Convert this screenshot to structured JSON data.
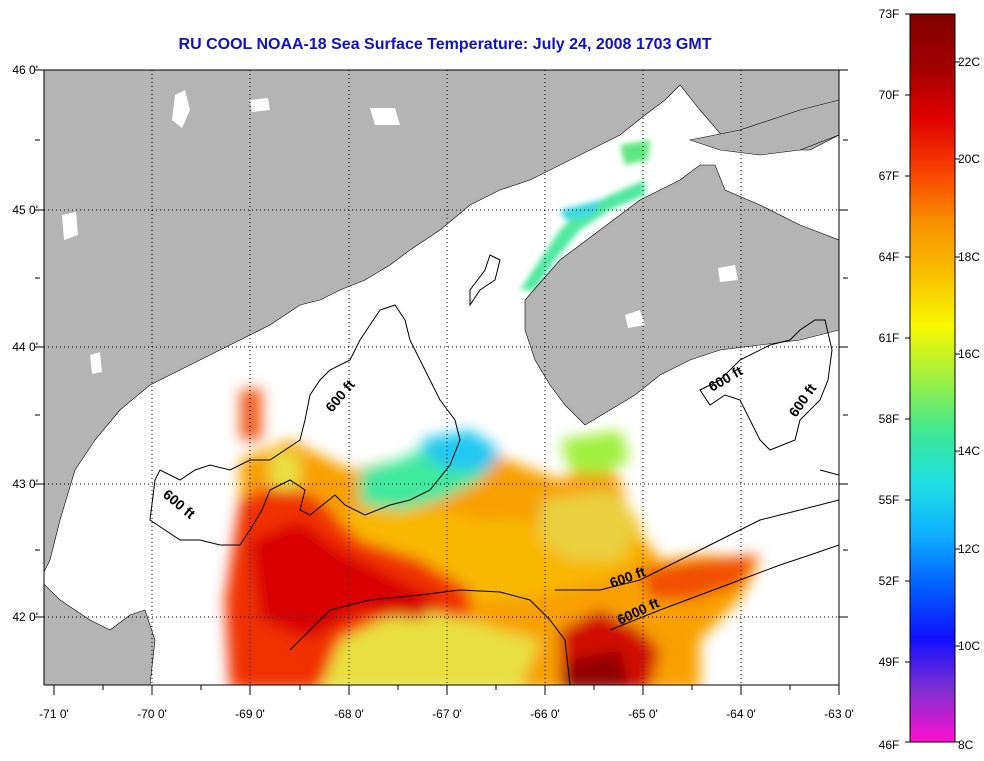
{
  "title": "RU COOL  NOAA-18  Sea Surface Temperature:  July 24, 2008 1703 GMT",
  "lat_labels": [
    "46 0'",
    "45 0'",
    "44 0'",
    "43 0'",
    "42 0'"
  ],
  "lon_labels": [
    "-71 0'",
    "-70 0'",
    "-69 0'",
    "-68 0'",
    "-67 0'",
    "-66 0'",
    "-65 0'",
    "-64 0'",
    "-63 0'"
  ],
  "isobath_labels": [
    "600 ft",
    "600 ft",
    "600 ft",
    "600 ft",
    "600 ft",
    "6000 ft"
  ],
  "colorbar": {
    "fahrenheit": [
      "73F",
      "70F",
      "67F",
      "64F",
      "61F",
      "58F",
      "55F",
      "52F",
      "49F",
      "46F"
    ],
    "celsius": [
      "22C",
      "20C",
      "18C",
      "16C",
      "14C",
      "12C",
      "10C",
      "8C"
    ],
    "colors": [
      "#ff10d0",
      "#8030d0",
      "#1010ff",
      "#0060ff",
      "#10b0ff",
      "#20e0e0",
      "#40e890",
      "#a0f040",
      "#f8f800",
      "#f8c000",
      "#f89000",
      "#f84000",
      "#e00000",
      "#a00000",
      "#800000"
    ]
  },
  "colors": {
    "title": "#1010c8",
    "land": "#b4b4b4",
    "water": "#ffffff"
  }
}
